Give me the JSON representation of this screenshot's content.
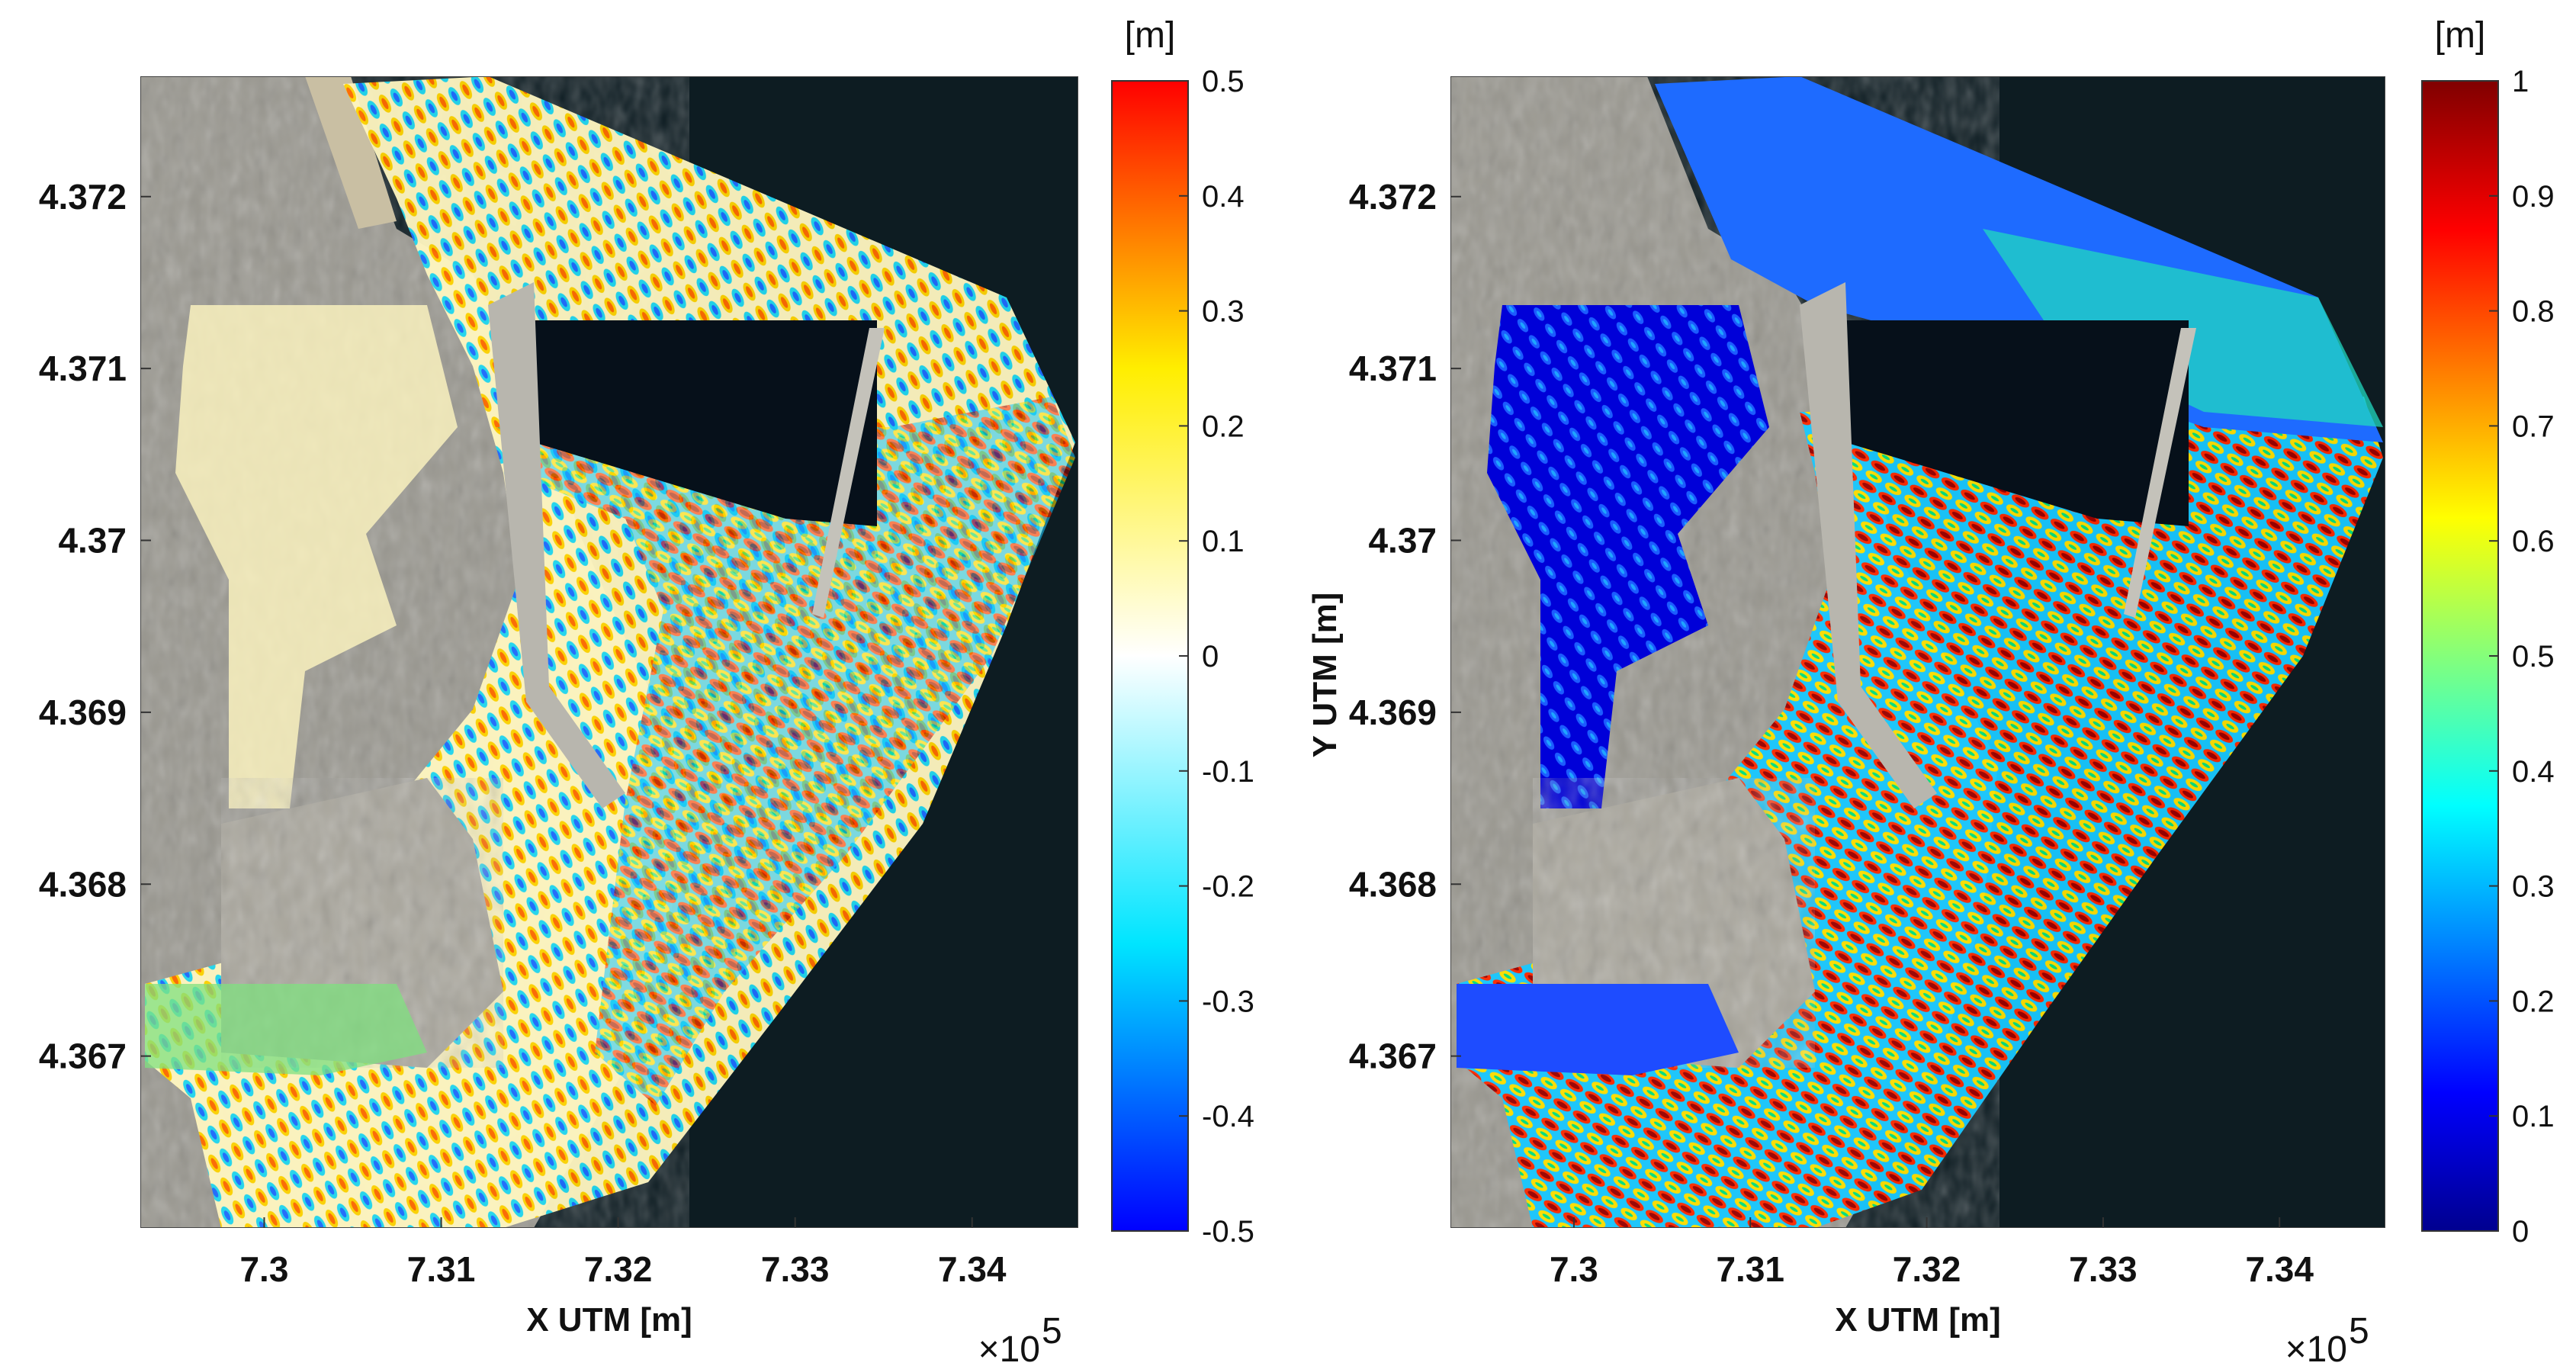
{
  "chart_data": [
    {
      "type": "heatmap",
      "title": "",
      "xlabel": "X UTM [m]",
      "ylabel": "",
      "x_ticks": [
        "7.3",
        "7.31",
        "7.32",
        "7.33",
        "7.34"
      ],
      "x_tick_values": [
        7.3,
        7.31,
        7.32,
        7.33,
        7.34
      ],
      "x_multiplier": "×10",
      "x_multiplier_exp": "5",
      "y_ticks": [
        "4.372",
        "4.371",
        "4.37",
        "4.369",
        "4.368",
        "4.367"
      ],
      "y_tick_values": [
        4.372,
        4.371,
        4.37,
        4.369,
        4.368,
        4.367
      ],
      "xlim": [
        7.293,
        7.346
      ],
      "ylim": [
        4.366,
        4.3727
      ],
      "colorbar": {
        "unit": "[m]",
        "range": [
          -0.5,
          0.5
        ],
        "ticks": [
          "0.5",
          "0.4",
          "0.3",
          "0.2",
          "0.1",
          "0",
          "-0.1",
          "-0.2",
          "-0.3",
          "-0.4",
          "-0.5"
        ],
        "colormap": "diverging blue-cyan-white-yellow-red",
        "colors": [
          "#0000ff",
          "#00e5ff",
          "#ffffff",
          "#ffee00",
          "#ff0000"
        ]
      },
      "background": "satellite image of port area"
    },
    {
      "type": "heatmap",
      "title": "",
      "xlabel": "X UTM [m]",
      "ylabel": "Y UTM [m]",
      "x_ticks": [
        "7.3",
        "7.31",
        "7.32",
        "7.33",
        "7.34"
      ],
      "x_tick_values": [
        7.3,
        7.31,
        7.32,
        7.33,
        7.34
      ],
      "x_multiplier": "×10",
      "x_multiplier_exp": "5",
      "y_ticks": [
        "4.372",
        "4.371",
        "4.37",
        "4.369",
        "4.368",
        "4.367"
      ],
      "y_tick_values": [
        4.372,
        4.371,
        4.37,
        4.369,
        4.368,
        4.367
      ],
      "xlim": [
        7.293,
        7.346
      ],
      "ylim": [
        4.366,
        4.3727
      ],
      "colorbar": {
        "unit": "[m]",
        "range": [
          0,
          1
        ],
        "ticks": [
          "1",
          "0.9",
          "0.8",
          "0.7",
          "0.6",
          "0.5",
          "0.4",
          "0.3",
          "0.2",
          "0.1",
          "0"
        ],
        "colormap": "jet",
        "colors": [
          "#00008f",
          "#0000ff",
          "#00ffff",
          "#ffff00",
          "#ff0000",
          "#800000"
        ]
      },
      "background": "satellite image of port area"
    }
  ]
}
